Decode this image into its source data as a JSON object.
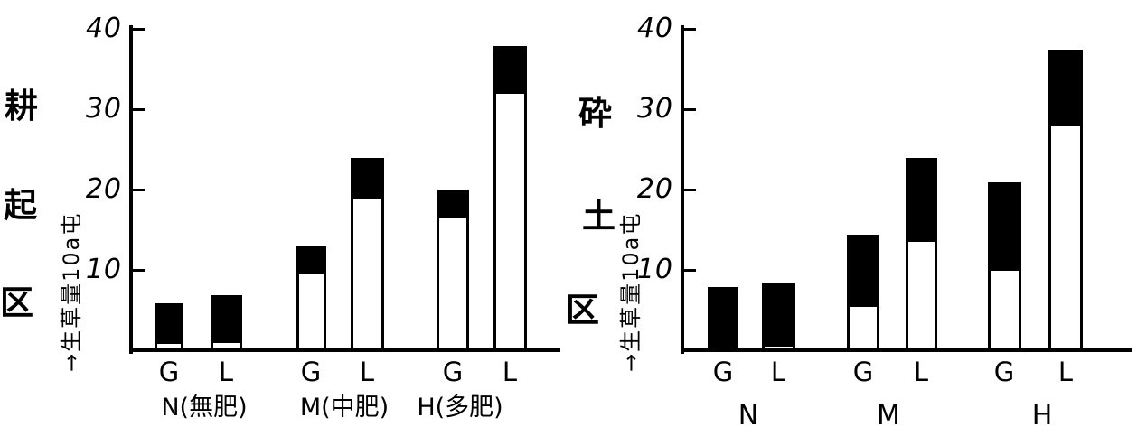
{
  "figure": {
    "background": "#ffffff",
    "ink": "#000000"
  },
  "chart_data": [
    {
      "type": "bar",
      "stacked": true,
      "panel": "left",
      "title": "耕起区",
      "title_chars": [
        "耕",
        "起",
        "区"
      ],
      "ylabel": "生草量10a屯",
      "ylabel_with_arrow": "→生草量10a屯",
      "ylim": [
        0,
        40
      ],
      "yticks": [
        10,
        20,
        30,
        40
      ],
      "grid": false,
      "legend": "none",
      "groups": [
        "N(無肥)",
        "M(中肥)",
        "H(多肥)"
      ],
      "categories": [
        "G",
        "L",
        "G",
        "L",
        "G",
        "L"
      ],
      "series": [
        {
          "name": "lower-segment-white",
          "color": "#ffffff",
          "values": [
            1,
            1,
            9.5,
            19,
            16.5,
            32
          ]
        },
        {
          "name": "upper-segment-black",
          "color": "#000000",
          "values": [
            5,
            6,
            3.5,
            5,
            3.5,
            6
          ]
        }
      ],
      "totals": [
        6,
        7,
        13,
        24,
        20,
        38
      ]
    },
    {
      "type": "bar",
      "stacked": true,
      "panel": "right",
      "title": "砕土区",
      "title_chars": [
        "砕",
        "土",
        "区"
      ],
      "ylabel": "生草量10a屯",
      "ylabel_with_arrow": "→生草量10a屯",
      "ylim": [
        0,
        40
      ],
      "yticks": [
        10,
        20,
        30,
        40
      ],
      "grid": false,
      "legend": "none",
      "groups": [
        "N",
        "M",
        "H"
      ],
      "categories": [
        "G",
        "L",
        "G",
        "L",
        "G",
        "L"
      ],
      "series": [
        {
          "name": "lower-segment-white",
          "color": "#ffffff",
          "values": [
            0.5,
            0.5,
            5.5,
            13.5,
            10,
            28
          ]
        },
        {
          "name": "upper-segment-black",
          "color": "#000000",
          "values": [
            7.5,
            8,
            9,
            10.5,
            11,
            9.5
          ]
        }
      ],
      "totals": [
        8,
        8.5,
        14.5,
        24,
        21,
        37.5
      ]
    }
  ]
}
